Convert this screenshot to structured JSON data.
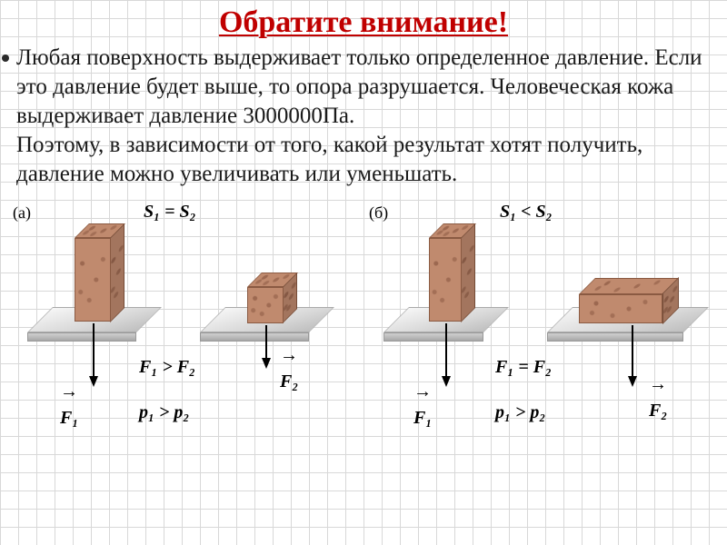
{
  "title": {
    "text": "Обратите внимание!",
    "color": "#c00000",
    "fontsize": 34
  },
  "body": {
    "text": "Любая поверхность выдерживает только определенное давление. Если это давление будет выше, то опора разрушается. Человеческая кожа выдерживает давление 3000000Па.\nПоэтому, в зависимости от того, какой результат хотят получить, давление можно увеличивать или уменьшать.",
    "color": "#1a1a1a",
    "fontsize": 25
  },
  "diagram": {
    "label_fontsize": 18,
    "formula_fontsize": 20,
    "stone_color": "#c08a6e",
    "table_color": "#d8d8d8",
    "panel_a": {
      "label": "(а)",
      "s_relation": "S₁ = S₂",
      "f_relation": "F₁ > F₂",
      "p_relation": "p₁ > p₂",
      "force1": "F₁",
      "force2": "F₂"
    },
    "panel_b": {
      "label": "(б)",
      "s_relation": "S₁ < S₂",
      "f_relation": "F₁ = F₂",
      "p_relation": "p₁ > p₂",
      "force1": "F₁",
      "force2": "F₂"
    }
  }
}
